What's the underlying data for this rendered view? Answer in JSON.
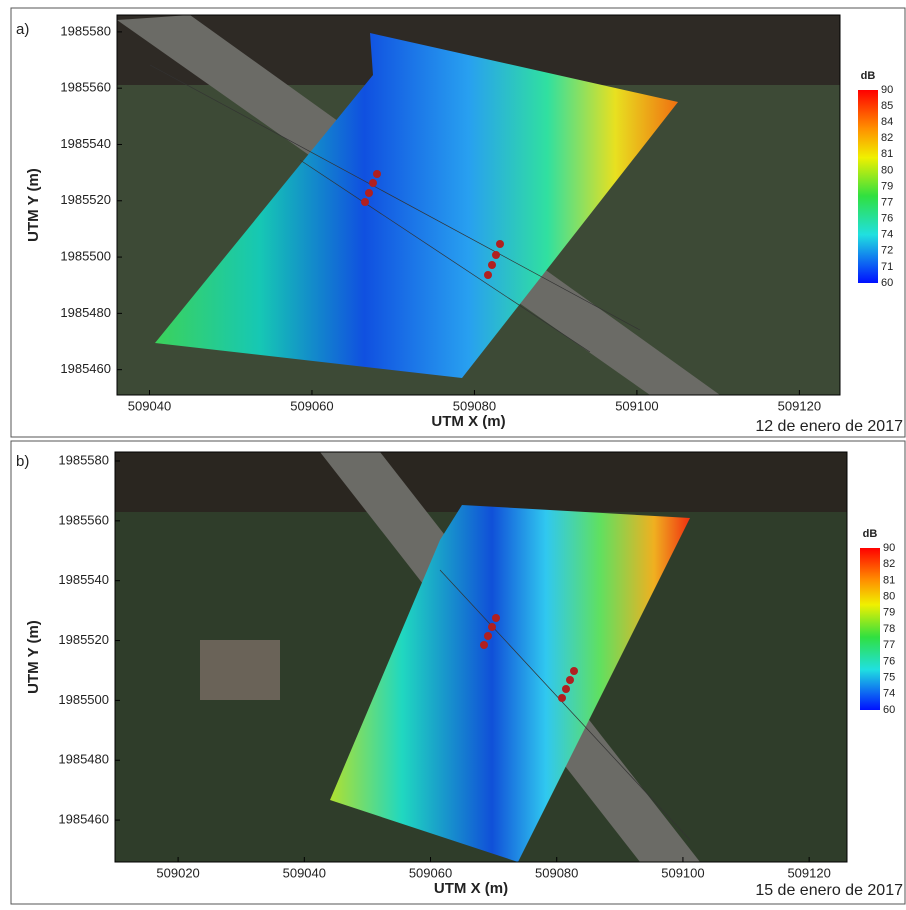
{
  "panels": [
    {
      "label": "a)",
      "date": "12 de enero de 2017",
      "x_label": "UTM X (m)",
      "y_label": "UTM Y (m)",
      "xlim": [
        509036,
        509125
      ],
      "ylim": [
        1985451,
        1985586
      ],
      "xticks": [
        509040,
        509060,
        509080,
        509100,
        509120
      ],
      "yticks": [
        1985460,
        1985480,
        1985500,
        1985520,
        1985540,
        1985560,
        1985580
      ],
      "colorbar_title": "dB",
      "colorbar_labels": [
        90,
        85,
        84,
        82,
        81,
        80,
        79,
        77,
        76,
        74,
        72,
        71,
        60
      ]
    },
    {
      "label": "b)",
      "date": "15 de enero de 2017",
      "x_label": "UTM X (m)",
      "y_label": "UTM Y (m)",
      "xlim": [
        509010,
        509126
      ],
      "ylim": [
        1985446,
        1985583
      ],
      "xticks": [
        509020,
        509040,
        509060,
        509080,
        509100,
        509120
      ],
      "yticks": [
        1985460,
        1985480,
        1985500,
        1985520,
        1985540,
        1985560,
        1985580
      ],
      "colorbar_title": "dB",
      "colorbar_labels": [
        90,
        82,
        81,
        80,
        79,
        78,
        77,
        76,
        75,
        74,
        60
      ]
    }
  ]
}
